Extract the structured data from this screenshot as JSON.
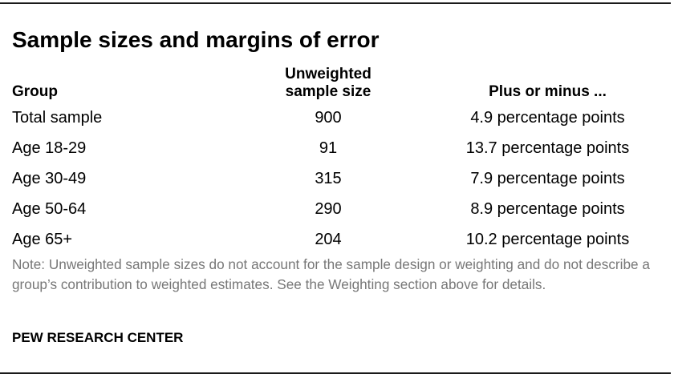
{
  "title": "Sample sizes and margins of error",
  "headers": {
    "group": "Group",
    "size_line1": "Unweighted",
    "size_line2": "sample size",
    "moe": "Plus or minus ..."
  },
  "rows": [
    {
      "group": "Total sample",
      "size": "900",
      "moe": "4.9 percentage points"
    },
    {
      "group": "Age 18-29",
      "size": "91",
      "moe": "13.7 percentage points"
    },
    {
      "group": "Age 30-49",
      "size": "315",
      "moe": "7.9 percentage points"
    },
    {
      "group": "Age 50-64",
      "size": "290",
      "moe": "8.9 percentage points"
    },
    {
      "group": "Age 65+",
      "size": "204",
      "moe": "10.2 percentage points"
    }
  ],
  "note": "Note: Unweighted sample sizes do not account for the sample design or weighting and do not describe a group’s contribution to weighted estimates. See the Weighting section above for details.",
  "source": "PEW RESEARCH CENTER",
  "colors": {
    "text": "#000000",
    "note": "#777777",
    "rule": "#1a1a1a"
  }
}
